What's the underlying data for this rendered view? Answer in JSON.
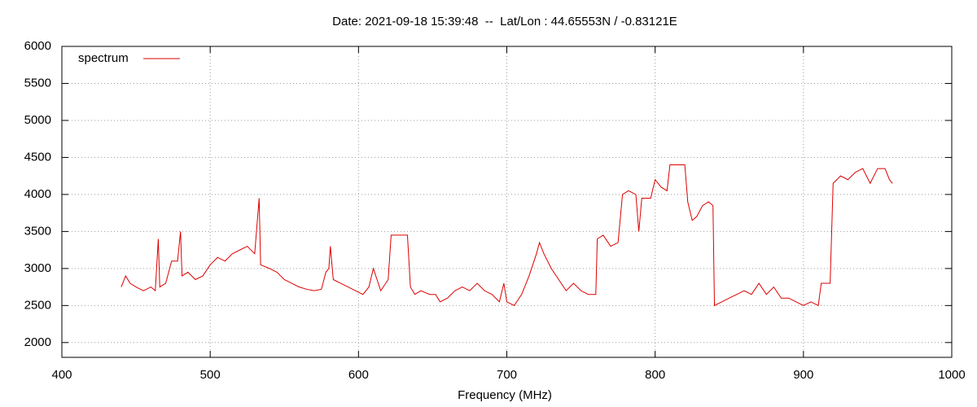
{
  "chart_data": {
    "type": "line",
    "title": "Date: 2021-09-18 15:39:48  --  Lat/Lon : 44.65553N / -0.83121E",
    "x_label": "Frequency (MHz)",
    "xlim": [
      400,
      1000
    ],
    "xticks": [
      400,
      500,
      600,
      700,
      800,
      900,
      1000
    ],
    "ylim": [
      1800,
      6000
    ],
    "yticks": [
      2000,
      2500,
      3000,
      3500,
      4000,
      4500,
      5000,
      5500,
      6000
    ],
    "grid": true,
    "legend": "top-left",
    "x": [
      440,
      443,
      446,
      450,
      455,
      460,
      463,
      465,
      466,
      470,
      474,
      478,
      480,
      481,
      485,
      490,
      495,
      500,
      505,
      510,
      515,
      520,
      525,
      530,
      533,
      534,
      540,
      545,
      550,
      555,
      560,
      565,
      570,
      575,
      578,
      580,
      581,
      583,
      588,
      593,
      598,
      603,
      607,
      610,
      615,
      620,
      622,
      626,
      630,
      633,
      635,
      638,
      642,
      648,
      652,
      655,
      660,
      665,
      670,
      675,
      680,
      685,
      690,
      695,
      698,
      700,
      705,
      710,
      715,
      720,
      722,
      725,
      730,
      735,
      740,
      745,
      750,
      755,
      760,
      761,
      765,
      770,
      775,
      778,
      782,
      787,
      789,
      791,
      797,
      800,
      804,
      808,
      810,
      815,
      820,
      822,
      825,
      828,
      832,
      836,
      839,
      840,
      845,
      850,
      855,
      860,
      865,
      870,
      875,
      880,
      885,
      890,
      895,
      900,
      905,
      910,
      912,
      916,
      918,
      920,
      925,
      930,
      935,
      940,
      945,
      950,
      955,
      958,
      960
    ],
    "series": [
      {
        "name": "spectrum",
        "color": "#dd0000",
        "values": [
          2750,
          2900,
          2800,
          2750,
          2700,
          2750,
          2700,
          3400,
          2750,
          2800,
          3100,
          3100,
          3500,
          2900,
          2950,
          2850,
          2900,
          3050,
          3150,
          3100,
          3200,
          3250,
          3300,
          3200,
          3950,
          3050,
          3000,
          2950,
          2850,
          2800,
          2750,
          2720,
          2700,
          2720,
          2950,
          3000,
          3300,
          2850,
          2800,
          2750,
          2700,
          2650,
          2750,
          3000,
          2700,
          2850,
          3450,
          3450,
          3450,
          3450,
          2750,
          2650,
          2700,
          2650,
          2650,
          2550,
          2600,
          2700,
          2750,
          2700,
          2800,
          2700,
          2650,
          2550,
          2800,
          2550,
          2500,
          2650,
          2900,
          3200,
          3350,
          3200,
          3000,
          2850,
          2700,
          2800,
          2700,
          2650,
          2650,
          3400,
          3450,
          3300,
          3350,
          4000,
          4050,
          4000,
          3500,
          3950,
          3950,
          4200,
          4100,
          4050,
          4400,
          4400,
          4400,
          3900,
          3650,
          3700,
          3850,
          3900,
          3850,
          2500,
          2550,
          2600,
          2650,
          2700,
          2650,
          2800,
          2650,
          2750,
          2600,
          2600,
          2550,
          2500,
          2550,
          2500,
          2800,
          2800,
          2800,
          4150,
          4250,
          4200,
          4300,
          4350,
          4150,
          4350,
          4350,
          4200,
          4150
        ]
      }
    ]
  }
}
